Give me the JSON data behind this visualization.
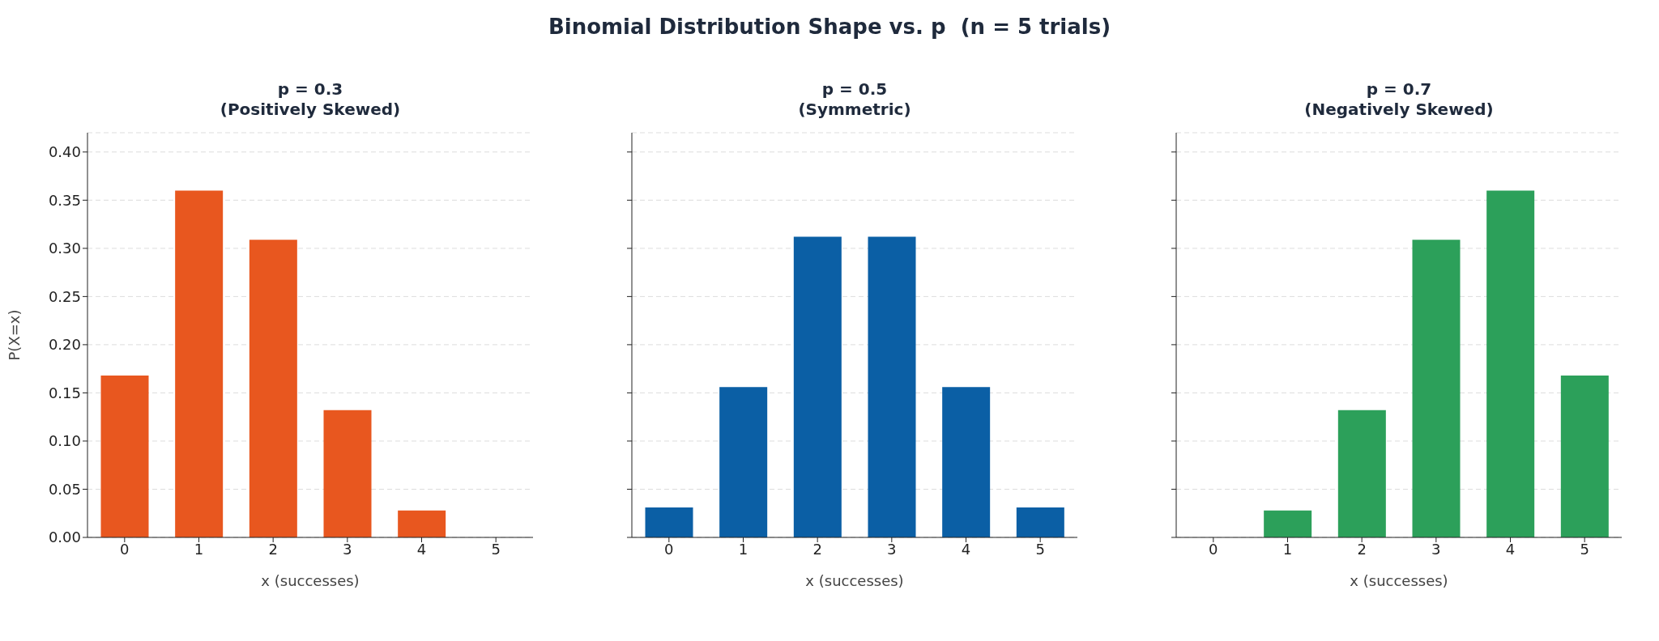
{
  "chart_data": [
    {
      "type": "bar",
      "subtitle": "p = 0.3\n(Positively Skewed)",
      "categories": [
        "0",
        "1",
        "2",
        "3",
        "4",
        "5"
      ],
      "values": [
        0.168,
        0.36,
        0.309,
        0.132,
        0.028,
        0
      ],
      "color": "#e8571f",
      "xlabel": "x (successes)",
      "ylabel": "P(X=x)",
      "ylim": [
        0,
        0.42
      ],
      "yticks": [
        {
          "value": 0,
          "label": "0.00"
        },
        {
          "value": 0.05,
          "label": "0.05"
        },
        {
          "value": 0.1,
          "label": "0.10"
        },
        {
          "value": 0.15,
          "label": "0.15"
        },
        {
          "value": 0.2,
          "label": "0.20"
        },
        {
          "value": 0.25,
          "label": "0.25"
        },
        {
          "value": 0.3,
          "label": "0.30"
        },
        {
          "value": 0.35,
          "label": "0.35"
        },
        {
          "value": 0.4,
          "label": "0.40"
        }
      ],
      "grid": "y"
    },
    {
      "type": "bar",
      "title": "Binomial Distribution Shape vs. p  (n = 5 trials)",
      "subtitle": "p = 0.5\n(Symmetric)",
      "categories": [
        "0",
        "1",
        "2",
        "3",
        "4",
        "5"
      ],
      "values": [
        0.031,
        0.156,
        0.312,
        0.312,
        0.156,
        0.031
      ],
      "color": "#0b5fa5",
      "xlabel": "x (successes)",
      "ylim": [
        0,
        0.42
      ],
      "yticks": [
        {
          "value": 0,
          "label": null
        },
        {
          "value": 0.05,
          "label": null
        },
        {
          "value": 0.1,
          "label": null
        },
        {
          "value": 0.15,
          "label": null
        },
        {
          "value": 0.2,
          "label": null
        },
        {
          "value": 0.25,
          "label": null
        },
        {
          "value": 0.3,
          "label": null
        },
        {
          "value": 0.35,
          "label": null
        },
        {
          "value": 0.4,
          "label": null
        }
      ],
      "grid": "y",
      "tick_labels": "x"
    },
    {
      "type": "bar",
      "subtitle": "p = 0.7\n(Negatively Skewed)",
      "categories": [
        "0",
        "1",
        "2",
        "3",
        "4",
        "5"
      ],
      "values": [
        0,
        0.028,
        0.132,
        0.309,
        0.36,
        0.168
      ],
      "color": "#2ca05a",
      "xlabel": "x (successes)",
      "ylim": [
        0,
        0.42
      ],
      "yticks": [
        {
          "value": 0,
          "label": null
        },
        {
          "value": 0.05,
          "label": null
        },
        {
          "value": 0.1,
          "label": null
        },
        {
          "value": 0.15,
          "label": null
        },
        {
          "value": 0.2,
          "label": null
        },
        {
          "value": 0.25,
          "label": null
        },
        {
          "value": 0.3,
          "label": null
        },
        {
          "value": 0.35,
          "label": null
        },
        {
          "value": 0.4,
          "label": null
        }
      ],
      "grid": "y",
      "tick_labels": "x"
    }
  ]
}
